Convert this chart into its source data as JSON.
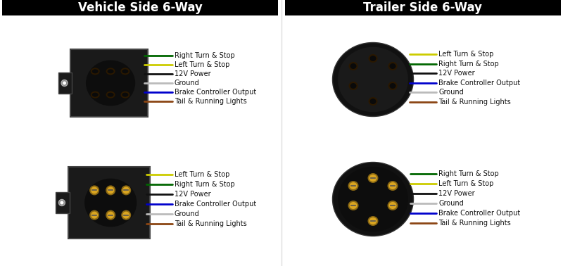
{
  "title_left": "Vehicle Side 6-Way",
  "title_right": "Trailer Side 6-Way",
  "bg_color": "#ffffff",
  "title_bg": "#000000",
  "title_fg": "#ffffff",
  "top_left_labels": [
    [
      "Tail & Running Lights",
      "#8B4513"
    ],
    [
      "Brake Controller Output",
      "#0000CC"
    ],
    [
      "Ground",
      "#bbbbbb"
    ],
    [
      "12V Power",
      "#111111"
    ],
    [
      "Left Turn & Stop",
      "#cccc00"
    ],
    [
      "Right Turn & Stop",
      "#006600"
    ]
  ],
  "top_right_labels": [
    [
      "Tail & Running Lights",
      "#8B4513"
    ],
    [
      "Ground",
      "#bbbbbb"
    ],
    [
      "Brake Controller Output",
      "#0000CC"
    ],
    [
      "12V Power",
      "#111111"
    ],
    [
      "Right Turn & Stop",
      "#006600"
    ],
    [
      "Left Turn & Stop",
      "#cccc00"
    ]
  ],
  "bot_left_labels": [
    [
      "Tail & Running Lights",
      "#8B4513"
    ],
    [
      "Ground",
      "#bbbbbb"
    ],
    [
      "Brake Controller Output",
      "#0000CC"
    ],
    [
      "12V Power",
      "#111111"
    ],
    [
      "Right Turn & Stop",
      "#006600"
    ],
    [
      "Left Turn & Stop",
      "#cccc00"
    ]
  ],
  "bot_right_labels": [
    [
      "Tail & Running Lights",
      "#8B4513"
    ],
    [
      "Brake Controller Output",
      "#0000CC"
    ],
    [
      "Ground",
      "#bbbbbb"
    ],
    [
      "12V Power",
      "#111111"
    ],
    [
      "Left Turn & Stop",
      "#cccc00"
    ],
    [
      "Right Turn & Stop",
      "#006600"
    ]
  ]
}
